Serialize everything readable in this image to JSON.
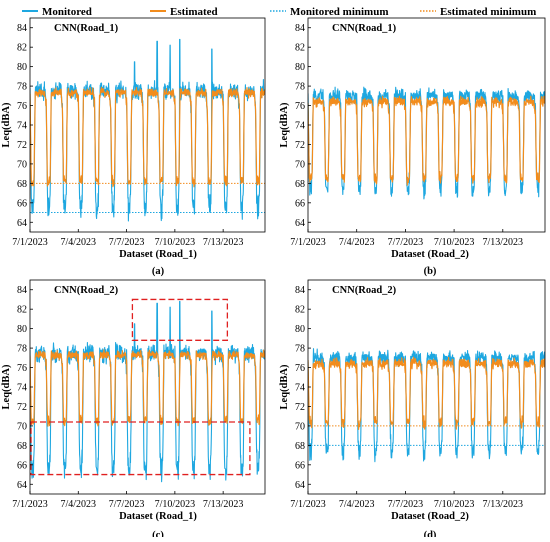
{
  "legend": [
    {
      "label": "Monitored",
      "color": "#1ea7e0",
      "style": "solid"
    },
    {
      "label": "Estimated",
      "color": "#f28c1c",
      "style": "solid"
    },
    {
      "label": "Monitored minimum",
      "color": "#1ea7e0",
      "style": "dotted"
    },
    {
      "label": "Estimated minimum",
      "color": "#f28c1c",
      "style": "dotted"
    }
  ],
  "chart_data": [
    {
      "type": "line",
      "id": "a",
      "title": "CNN(Road_1)",
      "sublabel": "(a)",
      "xlabel": "Dataset (Road_1)",
      "ylabel": "Leq(dBA)",
      "xticks": [
        "7/1/2023",
        "7/4/2023",
        "7/7/2023",
        "7/10/2023",
        "7/13/2023"
      ],
      "ylim": [
        63,
        85
      ],
      "yticks": [
        64,
        66,
        68,
        70,
        72,
        74,
        76,
        78,
        80,
        82,
        84
      ],
      "series": [
        {
          "name": "Monitored",
          "day_level": 77.5,
          "night_level": 66.5,
          "noise": 1.3,
          "peaks": [
            {
              "day": 7.9,
              "value": 82.6
            },
            {
              "day": 8.7,
              "value": 82.2
            },
            {
              "day": 9.3,
              "value": 82.8
            },
            {
              "day": 11.3,
              "value": 81.8
            },
            {
              "day": 6.5,
              "value": 80.5
            }
          ]
        },
        {
          "name": "Estimated",
          "day_level": 77.3,
          "night_level": 68.2,
          "noise": 0.6,
          "peaks": []
        }
      ],
      "minimums": {
        "monitored": 65,
        "estimated": 68
      }
    },
    {
      "type": "line",
      "id": "b",
      "title": "CNN(Road_1)",
      "sublabel": "(b)",
      "xlabel": "Dataset (Road_2)",
      "ylabel": "Leq(dBA)",
      "xticks": [
        "7/1/2023",
        "7/4/2023",
        "7/7/2023",
        "7/10/2023",
        "7/13/2023"
      ],
      "ylim": [
        63,
        85
      ],
      "yticks": [
        64,
        66,
        68,
        70,
        72,
        74,
        76,
        78,
        80,
        82,
        84
      ],
      "series": [
        {
          "name": "Monitored",
          "day_level": 77.0,
          "night_level": 68.3,
          "noise": 1.0,
          "peaks": []
        },
        {
          "name": "Estimated",
          "day_level": 76.4,
          "night_level": 68.5,
          "noise": 0.7,
          "peaks": []
        }
      ]
    },
    {
      "type": "line",
      "id": "c",
      "title": "CNN(Road_2)",
      "sublabel": "(c)",
      "xlabel": "Dataset (Road_1)",
      "ylabel": "Leq(dBA)",
      "xticks": [
        "7/1/2023",
        "7/4/2023",
        "7/7/2023",
        "7/10/2023",
        "7/13/2023"
      ],
      "ylim": [
        63,
        85
      ],
      "yticks": [
        64,
        66,
        68,
        70,
        72,
        74,
        76,
        78,
        80,
        82,
        84
      ],
      "series": [
        {
          "name": "Monitored",
          "day_level": 77.5,
          "night_level": 66.5,
          "noise": 1.3,
          "peaks": [
            {
              "day": 7.9,
              "value": 82.6
            },
            {
              "day": 8.7,
              "value": 82.2
            },
            {
              "day": 9.3,
              "value": 82.8
            },
            {
              "day": 11.3,
              "value": 81.8
            },
            {
              "day": 6.5,
              "value": 80.5
            }
          ]
        },
        {
          "name": "Estimated",
          "day_level": 77.3,
          "night_level": 70.5,
          "noise": 0.6,
          "peaks": []
        }
      ],
      "boxes": [
        {
          "x0": 6.3,
          "x1": 12.2,
          "y0": 78.8,
          "y1": 83
        },
        {
          "x0": 0,
          "x1": 13.6,
          "y0": 65,
          "y1": 70.4
        }
      ]
    },
    {
      "type": "line",
      "id": "d",
      "title": "CNN(Road_2)",
      "sublabel": "(d)",
      "xlabel": "Dataset (Road_2)",
      "ylabel": "Leq(dBA)",
      "xticks": [
        "7/1/2023",
        "7/4/2023",
        "7/7/2023",
        "7/10/2023",
        "7/13/2023"
      ],
      "ylim": [
        63,
        85
      ],
      "yticks": [
        64,
        66,
        68,
        70,
        72,
        74,
        76,
        78,
        80,
        82,
        84
      ],
      "series": [
        {
          "name": "Monitored",
          "day_level": 77.0,
          "night_level": 68.3,
          "noise": 1.0,
          "peaks": []
        },
        {
          "name": "Estimated",
          "day_level": 76.4,
          "night_level": 70.3,
          "noise": 0.7,
          "peaks": []
        }
      ],
      "minimums": {
        "monitored": 68,
        "estimated": 70
      }
    }
  ]
}
